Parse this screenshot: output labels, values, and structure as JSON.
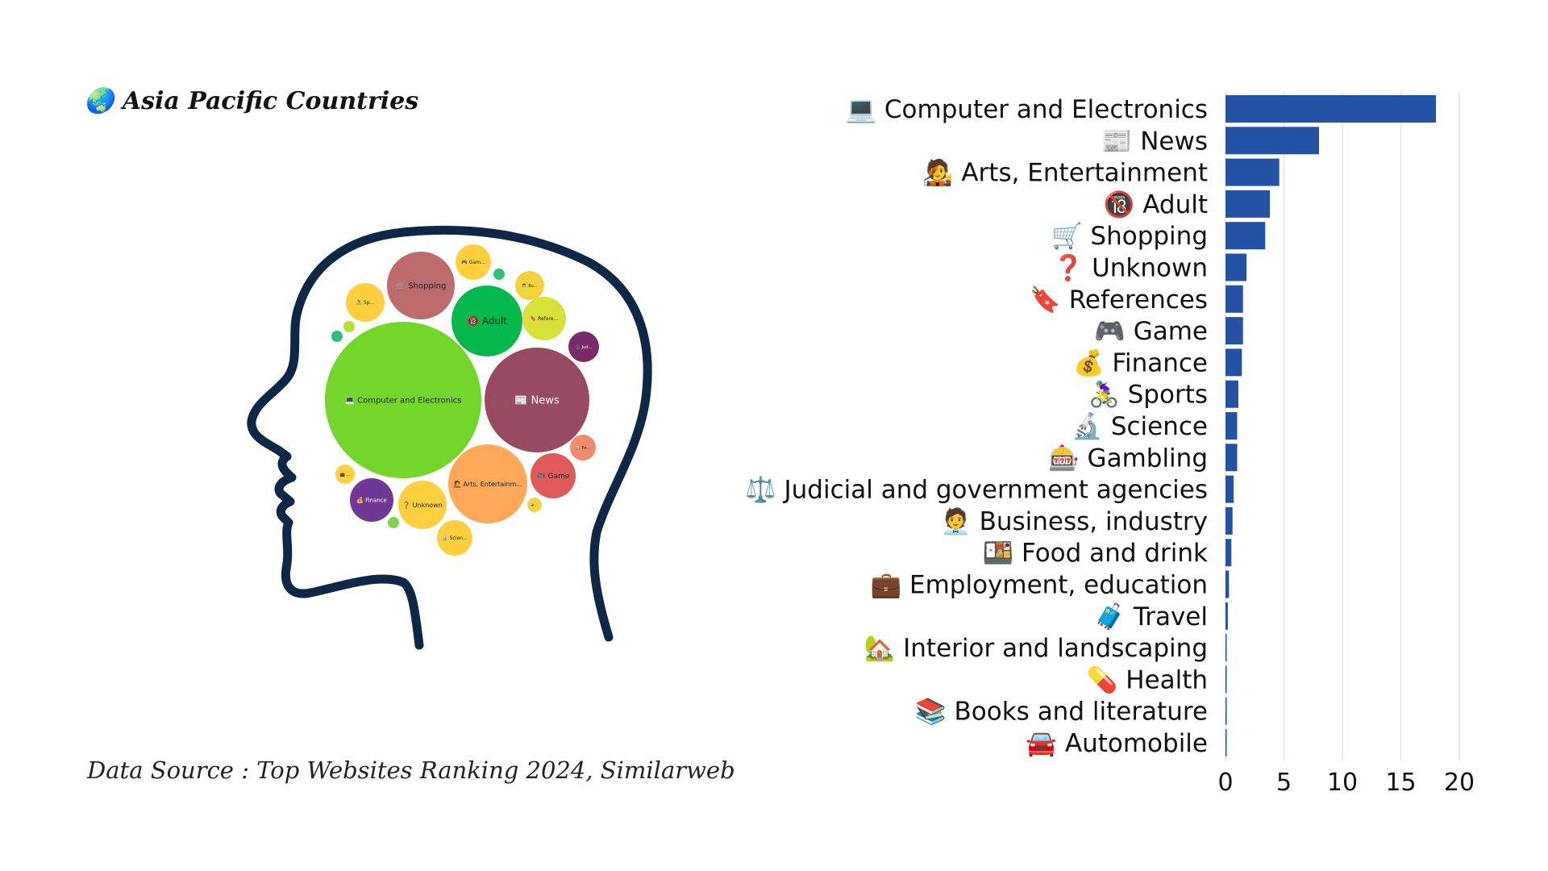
{
  "title": "🌏 Asia Pacific Countries",
  "source": "Data Source : Top Websites Ranking 2024, Similarweb",
  "colors": {
    "bar": "#2453a5",
    "grid": "#e3e3e3",
    "head_outline": "#0f2747"
  },
  "bubbles": [
    {
      "label": "💻 Computer and Electronics",
      "color": "#74d62a"
    },
    {
      "label": "📰 News",
      "color": "#994a63"
    },
    {
      "label": "🧑‍🎤 Arts, Entertainm...",
      "color": "#ffa958"
    },
    {
      "label": "🔞 Adult",
      "color": "#05b84c"
    },
    {
      "label": "🛒 Shopping",
      "color": "#bd6b6b"
    },
    {
      "label": "🎮 Game",
      "color": "#e05a5a"
    },
    {
      "label": "❓ Unknown",
      "color": "#ffcf3e"
    },
    {
      "label": "💰 Finance",
      "color": "#6f3896"
    },
    {
      "label": "🎮 Gam...",
      "color": "#ffcf3e"
    },
    {
      "label": "🔖 Refere...",
      "color": "#d8e03a"
    },
    {
      "label": "🔬 Scien...",
      "color": "#ffcf3e"
    },
    {
      "label": "🚴‍♀️ Sp...",
      "color": "#ffcf3e"
    },
    {
      "label": "🧑‍💼 Bu...",
      "color": "#f2d33a"
    },
    {
      "label": "🎰 Fo...",
      "color": "#f08c6e"
    },
    {
      "label": "⚖️ Jud...",
      "color": "#7a2a6b"
    },
    {
      "label": "💼 ...",
      "color": "#ffcf3e"
    },
    {
      "label": "🧳 ...",
      "color": "#ffcf3e"
    },
    {
      "label": "",
      "color": "#2ec07a"
    },
    {
      "label": "",
      "color": "#b8e035"
    },
    {
      "label": "",
      "color": "#2ec07a"
    },
    {
      "label": "",
      "color": "#7ed34a"
    }
  ],
  "chart_data": {
    "type": "bar",
    "orientation": "horizontal",
    "categories": [
      "💻 Computer and Electronics",
      "📰 News",
      "🧑‍🎤 Arts, Entertainment",
      "🔞 Adult",
      "🛒 Shopping",
      "❓ Unknown",
      "🔖 References",
      "🎮 Game",
      "💰 Finance",
      "🚴‍♀️ Sports",
      "🔬 Science",
      "🎰 Gambling",
      "⚖️ Judicial and government agencies",
      "🧑‍💼 Business, industry",
      "🍱 Food and drink",
      "💼 Employment, education",
      "🧳 Travel",
      "🏡 Interior and landscaping",
      "💊 Health",
      "📚 Books and literature",
      "🚘 Automobile"
    ],
    "values": [
      18,
      8,
      4.6,
      3.8,
      3.4,
      1.8,
      1.5,
      1.5,
      1.4,
      1.1,
      1.0,
      1.0,
      0.7,
      0.6,
      0.5,
      0.3,
      0.2,
      0.1,
      0.1,
      0.1,
      0.1
    ],
    "xticks": [
      "0",
      "5",
      "10",
      "15",
      "20"
    ],
    "xlim": [
      0,
      20
    ],
    "grid": true
  }
}
